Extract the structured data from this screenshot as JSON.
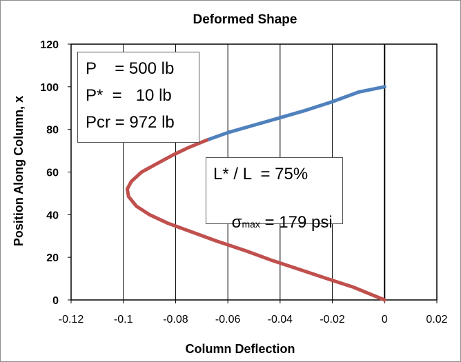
{
  "chart_data": {
    "type": "line",
    "title": "Deformed Shape",
    "xlabel": "Column Deflection",
    "ylabel": "Position Along Column, x",
    "xlim": [
      -0.12,
      0.02
    ],
    "ylim": [
      0,
      120
    ],
    "x_ticks": [
      "-0.12",
      "-0.1",
      "-0.08",
      "-0.06",
      "-0.04",
      "-0.02",
      "0",
      "0.02"
    ],
    "y_ticks": [
      "0",
      "20",
      "40",
      "60",
      "80",
      "100",
      "120"
    ],
    "x_tick_values": [
      -0.12,
      -0.1,
      -0.08,
      -0.06,
      -0.04,
      -0.02,
      0,
      0.02
    ],
    "y_tick_values": [
      0,
      20,
      40,
      60,
      80,
      100,
      120
    ],
    "grid": "vertical",
    "reference_line_x": 0,
    "series": [
      {
        "color": "#4f81bd",
        "points": [
          [
            0,
            100
          ],
          [
            -0.01,
            97.5
          ],
          [
            -0.02,
            93
          ],
          [
            -0.03,
            89
          ],
          [
            -0.04,
            85.5
          ],
          [
            -0.05,
            82
          ],
          [
            -0.06,
            78.5
          ],
          [
            -0.068,
            75
          ]
        ]
      },
      {
        "color": "#c0504d",
        "points": [
          [
            -0.068,
            75
          ],
          [
            -0.075,
            71.5
          ],
          [
            -0.081,
            68
          ],
          [
            -0.087,
            64
          ],
          [
            -0.093,
            60
          ],
          [
            -0.097,
            55.5
          ],
          [
            -0.0985,
            52
          ],
          [
            -0.098,
            48.5
          ],
          [
            -0.095,
            44
          ],
          [
            -0.09,
            40
          ],
          [
            -0.083,
            36
          ],
          [
            -0.074,
            32
          ],
          [
            -0.064,
            27.5
          ],
          [
            -0.053,
            23
          ],
          [
            -0.043,
            18.5
          ],
          [
            -0.033,
            14.5
          ],
          [
            -0.022,
            10
          ],
          [
            -0.012,
            6
          ],
          [
            -0.005,
            2.5
          ],
          [
            0,
            0
          ]
        ]
      }
    ],
    "annotations": {
      "box1": {
        "line1": "P    = 500 lb",
        "line2": "P*  =   10 lb",
        "line3": "Pcr = 972 lb"
      },
      "box2": {
        "line1": "L* / L  = 75%",
        "sigma_symbol": "σ",
        "sigma_sub": "max",
        "sigma_rest": " = 179 psi"
      }
    }
  }
}
